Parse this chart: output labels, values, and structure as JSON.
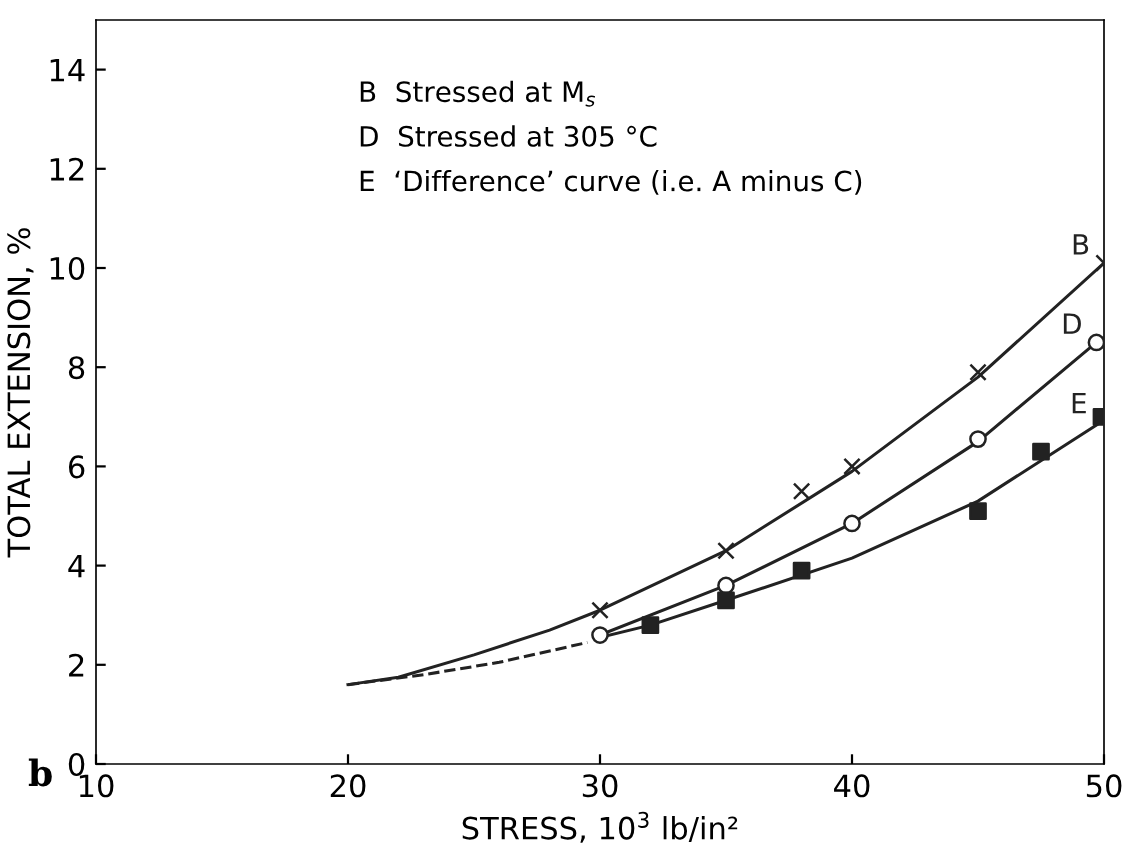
{
  "chart_data": {
    "type": "line",
    "xlabel": "STRESS, 10$^{3}$ lb/in²",
    "ylabel": "TOTAL EXTENSION, %",
    "xlim": [
      10,
      50
    ],
    "ylim": [
      0,
      15
    ],
    "xticks": [
      10,
      20,
      30,
      40,
      50
    ],
    "yticks": [
      0,
      2,
      4,
      6,
      8,
      10,
      12,
      14
    ],
    "grid": false,
    "annotations": [
      "B  Stressed at M$_{s}$",
      "D  Stressed at 305 °C",
      "E  ‘Difference’ curve (i.e. A minus C)",
      "b"
    ],
    "series": [
      {
        "name": "B",
        "color": "#222222",
        "marker": "none",
        "line_style": "solid",
        "x": [
          20,
          22,
          25,
          28,
          30,
          35,
          40,
          45,
          50
        ],
        "values": [
          1.6,
          1.75,
          2.2,
          2.7,
          3.1,
          4.3,
          5.9,
          7.8,
          10.1
        ]
      },
      {
        "name": "D",
        "color": "#222222",
        "marker": "none",
        "line_style": "solid",
        "x": [
          30,
          35,
          40,
          45,
          49.7
        ],
        "values": [
          2.6,
          3.6,
          4.85,
          6.5,
          8.5
        ]
      },
      {
        "name": "E",
        "color": "#222222",
        "marker": "none",
        "line_style": "solid",
        "x": [
          30,
          32,
          35,
          40,
          45,
          49.9
        ],
        "values": [
          2.55,
          2.8,
          3.3,
          4.15,
          5.3,
          6.9
        ]
      },
      {
        "color": "#222222",
        "marker": "none",
        "line_style": "dashed",
        "x": [
          20,
          23,
          26,
          29.5
        ],
        "values": [
          1.6,
          1.8,
          2.05,
          2.45
        ]
      },
      {
        "color": "#222222",
        "type": "scatter",
        "marker": "cross",
        "x": [
          30,
          35,
          38,
          40,
          45,
          50
        ],
        "values": [
          3.1,
          4.3,
          5.5,
          6.0,
          7.9,
          10.1
        ]
      },
      {
        "color": "#222222",
        "type": "scatter",
        "marker": "circle",
        "x": [
          30,
          35,
          40,
          45,
          49.7
        ],
        "values": [
          2.6,
          3.6,
          4.85,
          6.55,
          8.5
        ]
      },
      {
        "color": "#222222",
        "type": "scatter",
        "marker": "square",
        "x": [
          32,
          35,
          38,
          45,
          47.5,
          49.9
        ],
        "values": [
          2.8,
          3.3,
          3.9,
          5.1,
          6.3,
          7.0
        ]
      }
    ]
  }
}
